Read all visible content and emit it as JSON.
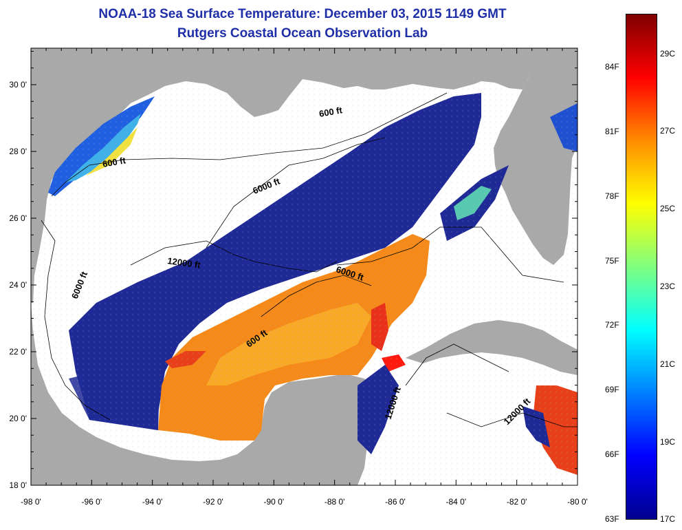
{
  "header": {
    "title": "NOAA-18 Sea Surface Temperature:  December 03, 2015 1149 GMT",
    "subtitle": "Rutgers Coastal Ocean Observation Lab"
  },
  "map": {
    "lon_ticks": [
      "-98 0'",
      "-96 0'",
      "-94 0'",
      "-92 0'",
      "-90 0'",
      "-88 0'",
      "-86 0'",
      "-84 0'",
      "-82 0'",
      "-80 0'"
    ],
    "lat_ticks": [
      "30 0'",
      "28 0'",
      "26 0'",
      "24 0'",
      "22 0'",
      "20 0'",
      "18 0'"
    ],
    "contour_labels": [
      "600 ft",
      "600 ft",
      "6000 ft",
      "12000 ft",
      "6000 ft",
      "6000 ft",
      "600 ft",
      "12000 ft",
      "12000 ft"
    ]
  },
  "colorbar": {
    "fahrenheit": [
      "84F",
      "81F",
      "78F",
      "75F",
      "72F",
      "69F",
      "66F",
      "63F"
    ],
    "celsius": [
      "29C",
      "27C",
      "25C",
      "23C",
      "21C",
      "19C",
      "17C"
    ],
    "colors": [
      "#7f0000",
      "#ff0000",
      "#ff8c00",
      "#ffff00",
      "#7fff7f",
      "#00ffff",
      "#0080ff",
      "#0000ff",
      "#00008f"
    ]
  }
}
